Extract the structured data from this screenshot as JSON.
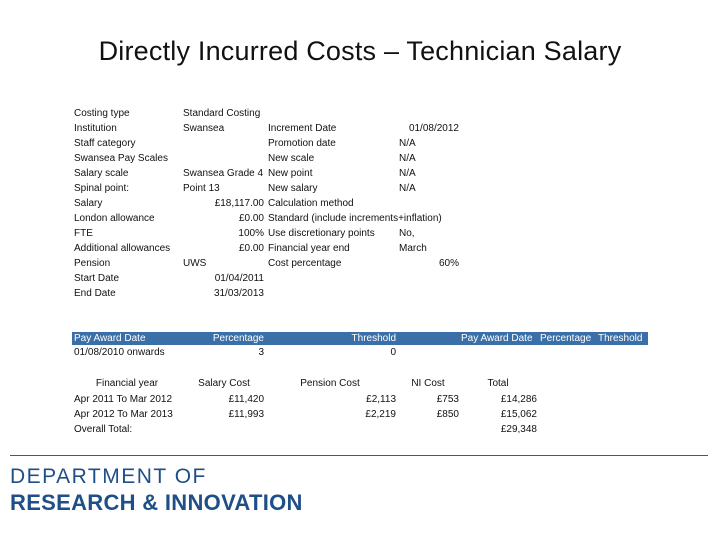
{
  "title": "Directly Incurred Costs – Technician  Salary",
  "details_left": [
    {
      "label": "Costing type",
      "value": "Standard Costing"
    },
    {
      "label": "Institution",
      "value": "Swansea"
    },
    {
      "label": "Staff category",
      "value": ""
    },
    {
      "label": "Swansea Pay Scales",
      "value": ""
    },
    {
      "label": "Salary scale",
      "value": "Swansea Grade 4"
    },
    {
      "label": "Spinal point:",
      "value": "Point 13"
    },
    {
      "label": "Salary",
      "value": "£18,117.00"
    },
    {
      "label": "London allowance",
      "value": "£0.00"
    },
    {
      "label": "FTE",
      "value": "100%"
    },
    {
      "label": "Additional allowances",
      "value": "£0.00"
    },
    {
      "label": "Pension",
      "value": "UWS"
    },
    {
      "label": "Start Date",
      "value": "01/04/2011"
    },
    {
      "label": "End Date",
      "value": "31/03/2013"
    }
  ],
  "details_right": [
    {
      "label": "Increment Date",
      "value": "01/08/2012"
    },
    {
      "label": "Promotion date",
      "value": "N/A"
    },
    {
      "label": "New scale",
      "value": "N/A"
    },
    {
      "label": "New point",
      "value": "N/A"
    },
    {
      "label": "New salary",
      "value": "N/A"
    },
    {
      "label": "Calculation method",
      "value": ""
    },
    {
      "label": "Standard (include increments+inflation)",
      "value": ""
    },
    {
      "label": "Use discretionary points",
      "value": "No,"
    },
    {
      "label": "Financial year end",
      "value": "March"
    },
    {
      "label": "Cost percentage",
      "value": "60%"
    }
  ],
  "pay_award": {
    "headers": [
      "Pay Award Date",
      "Percentage",
      "Threshold",
      "Pay Award Date",
      "Percentage",
      "Threshold"
    ],
    "row": [
      "01/08/2010 onwards",
      "3",
      "0"
    ]
  },
  "cost_table": {
    "headers": [
      "Financial year",
      "Salary Cost",
      "Pension Cost",
      "NI Cost",
      "Total"
    ],
    "rows": [
      [
        "Apr 2011 To Mar 2012",
        "£11,420",
        "£2,113",
        "£753",
        "£14,286"
      ],
      [
        "Apr 2012 To Mar 2013",
        "£11,993",
        "£2,219",
        "£850",
        "£15,062"
      ],
      [
        "Overall Total:",
        "",
        "",
        "",
        "£29,348"
      ]
    ]
  },
  "footer": {
    "line1": "DEPARTMENT OF",
    "line2": "RESEARCH & INNOVATION",
    "color": "#1f4f87"
  },
  "colors": {
    "header_bar": "#3a6fa8"
  }
}
